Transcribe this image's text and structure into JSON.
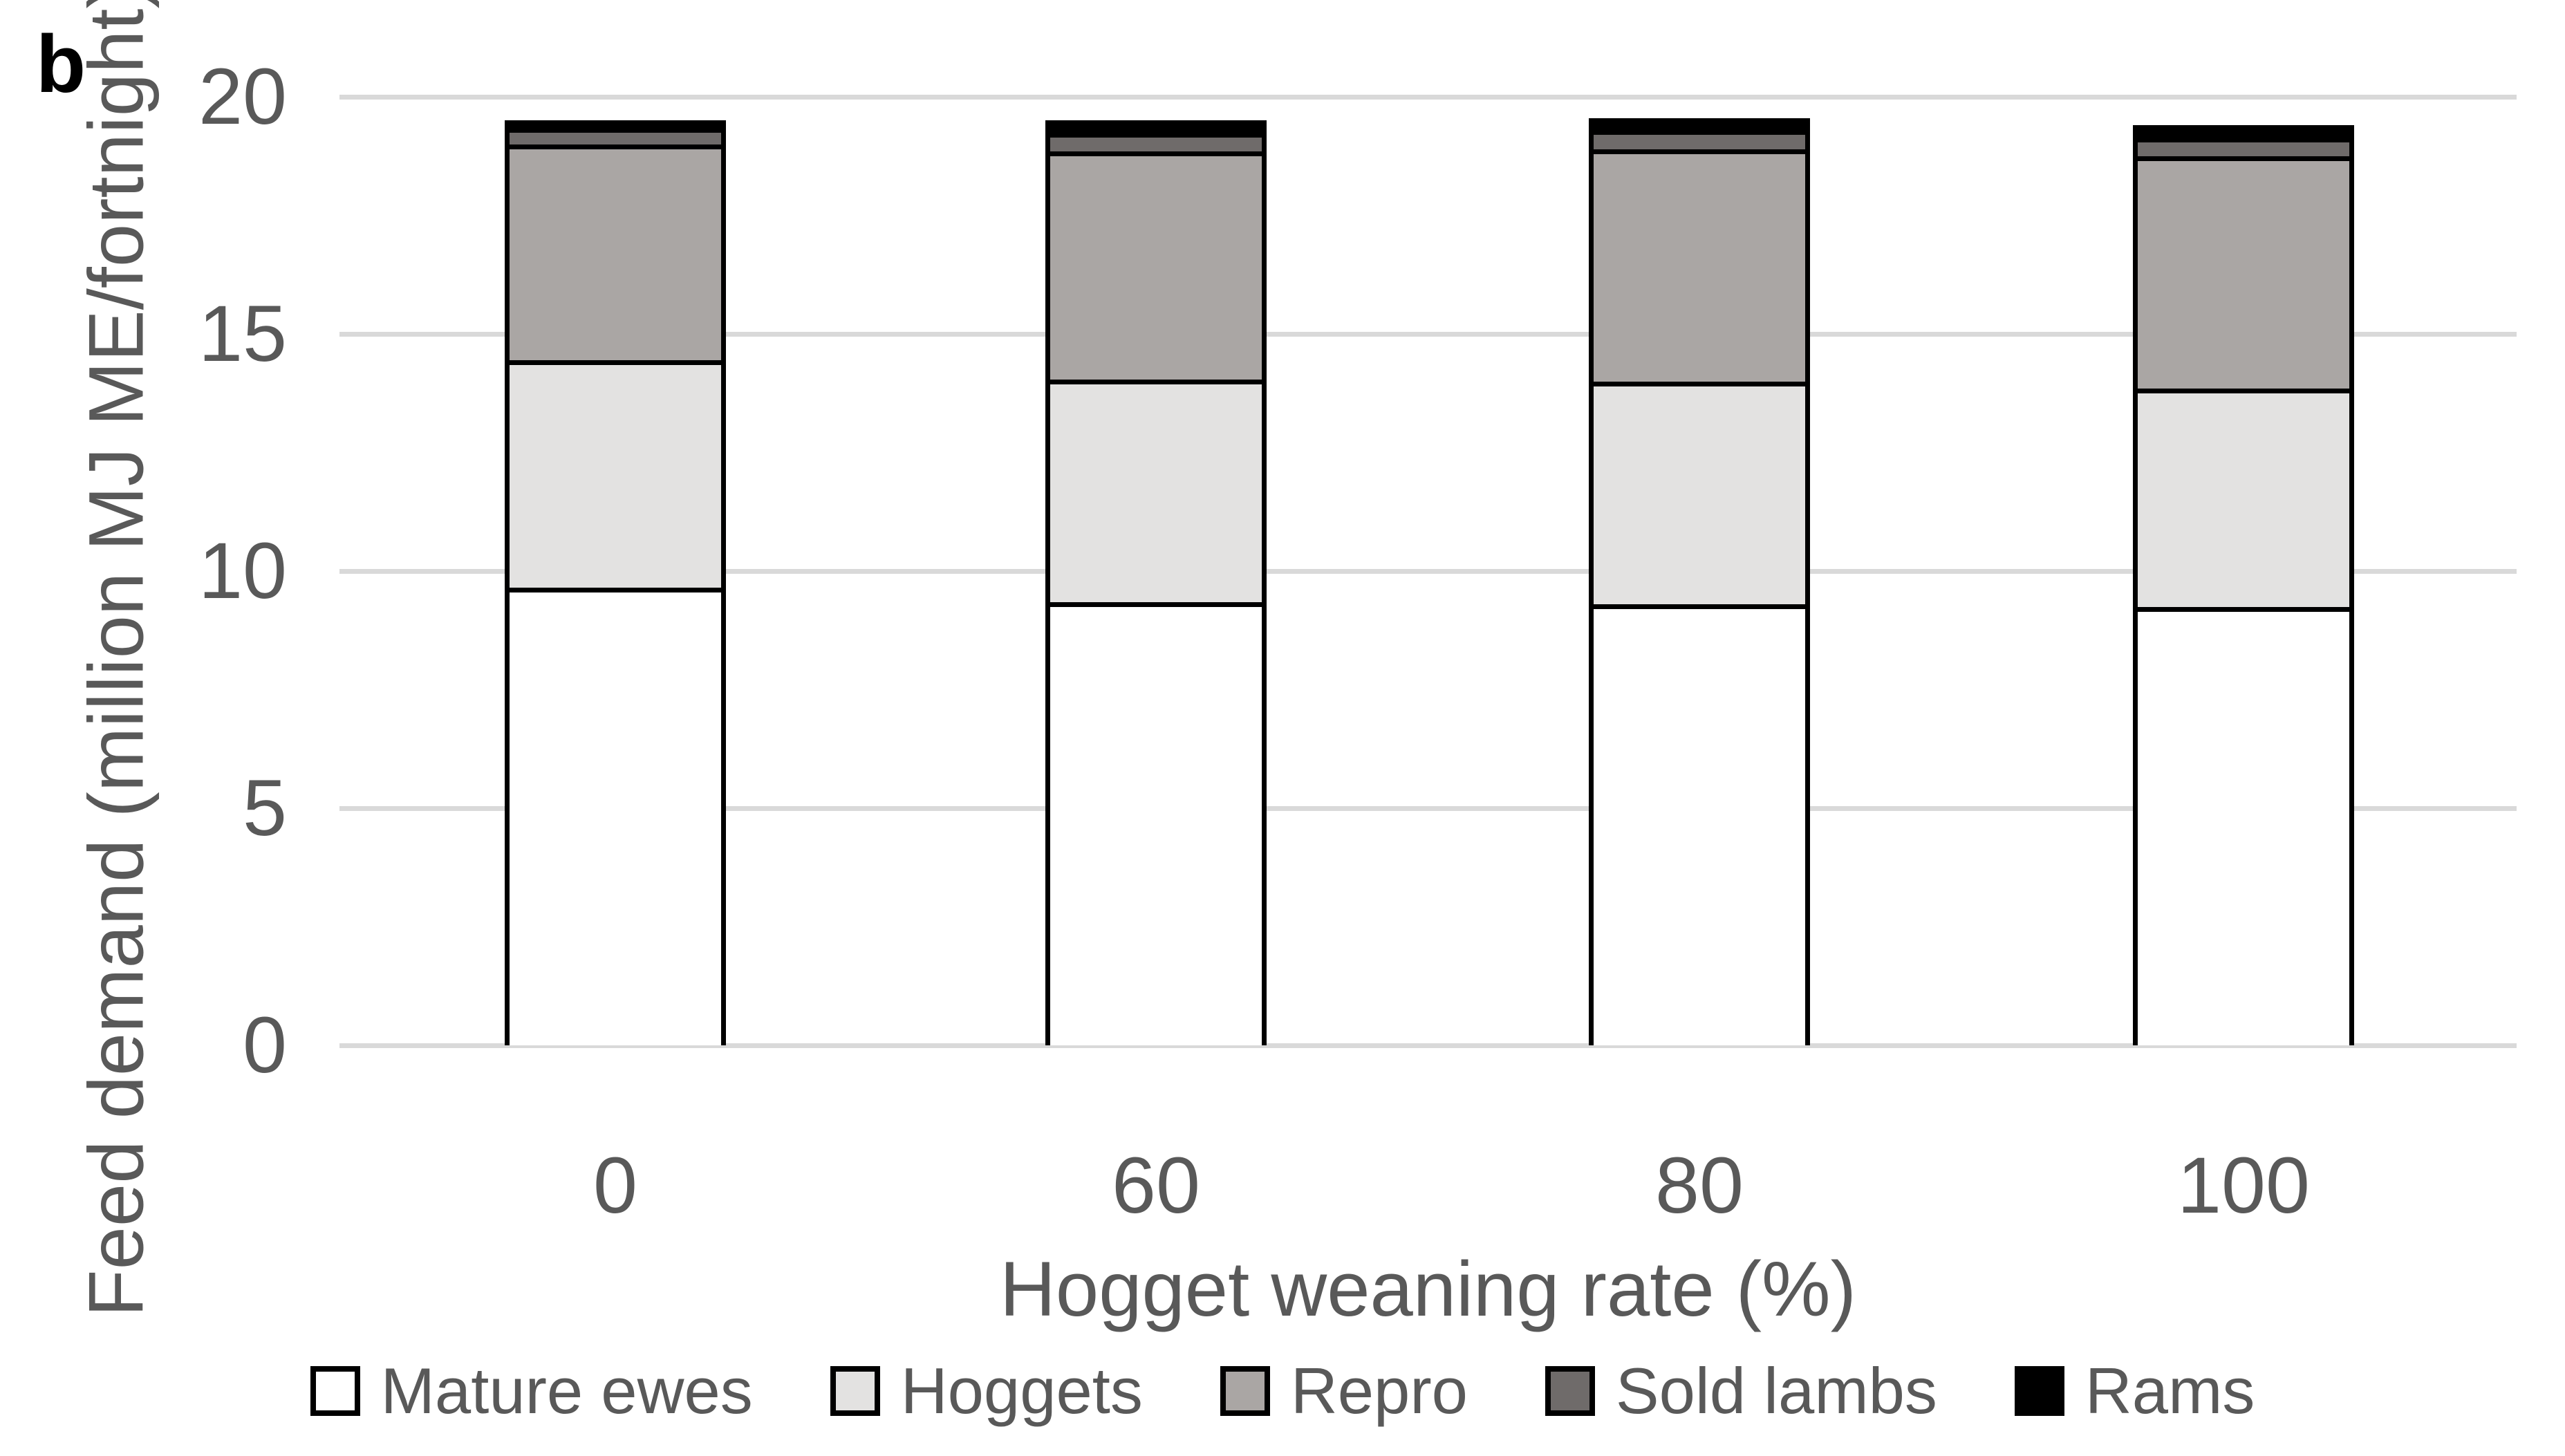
{
  "panel_label": "b",
  "colors": {
    "text": "#595959",
    "gridline": "#d9d9d9",
    "bar_outline": "#000000",
    "background": "#ffffff"
  },
  "chart_data": {
    "type": "bar",
    "stacked": true,
    "title": "",
    "xlabel": "Hogget weaning rate (%)",
    "ylabel": "Feed demand (million MJ ME/fortnight)",
    "categories": [
      "0",
      "60",
      "80",
      "100"
    ],
    "y_ticks": [
      0,
      5,
      10,
      15,
      20
    ],
    "ylim": [
      0,
      20
    ],
    "grid": "horizontal-only",
    "legend_position": "bottom",
    "series": [
      {
        "name": "Mature ewes",
        "color": "#ffffff",
        "values": [
          9.6,
          9.3,
          9.25,
          9.2
        ]
      },
      {
        "name": "Hoggets",
        "color": "#e3e2e1",
        "values": [
          4.8,
          4.7,
          4.7,
          4.6
        ]
      },
      {
        "name": "Repro",
        "color": "#aaa6a4",
        "values": [
          4.55,
          4.8,
          4.9,
          4.9
        ]
      },
      {
        "name": "Sold lambs",
        "color": "#6f6b6a",
        "values": [
          0.35,
          0.4,
          0.4,
          0.4
        ]
      },
      {
        "name": "Rams",
        "color": "#000000",
        "values": [
          0.1,
          0.2,
          0.2,
          0.2
        ]
      }
    ],
    "totals_approx": [
      19.4,
      19.4,
      19.45,
      19.3
    ]
  }
}
